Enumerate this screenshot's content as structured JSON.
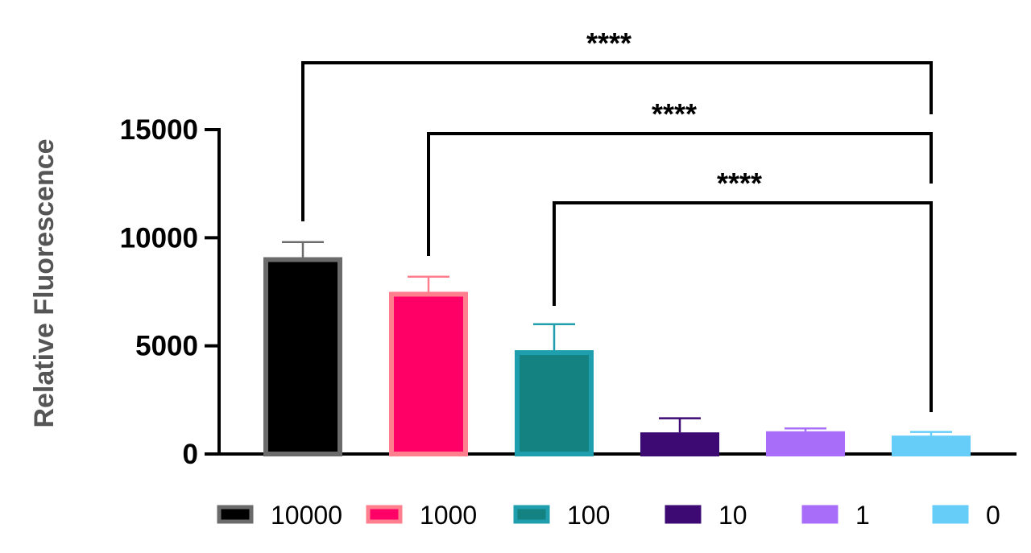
{
  "chart_data": {
    "type": "bar",
    "title": "",
    "xlabel": "",
    "ylabel": "Relative Fluorescence",
    "ylim": [
      0,
      15000
    ],
    "yticks": [
      0,
      5000,
      10000,
      15000
    ],
    "ytick_labels": [
      "0",
      "5000",
      "10000",
      "15000"
    ],
    "categories": [
      "10000",
      "1000",
      "100",
      "10",
      "1",
      "0"
    ],
    "values": [
      9100,
      7500,
      4800,
      1000,
      1050,
      850
    ],
    "errors": [
      700,
      700,
      1200,
      650,
      130,
      170
    ],
    "bar_fill_colors": [
      "#000000",
      "#ff0066",
      "#138280",
      "#3d0a73",
      "#a86efa",
      "#66cdf8"
    ],
    "bar_edge_colors": [
      "#6b6b6b",
      "#ff7f8e",
      "#1f9eae",
      "#3d0a73",
      "#a86efa",
      "#66cdf8"
    ],
    "significance": [
      {
        "from": "10000",
        "to": "0",
        "label": "****"
      },
      {
        "from": "1000",
        "to": "0",
        "label": "****"
      },
      {
        "from": "100",
        "to": "0",
        "label": "****"
      }
    ],
    "legend": {
      "placement": "bottom",
      "entries": [
        "10000",
        "1000",
        "100",
        "10",
        "1",
        "0"
      ]
    },
    "grid": false
  }
}
